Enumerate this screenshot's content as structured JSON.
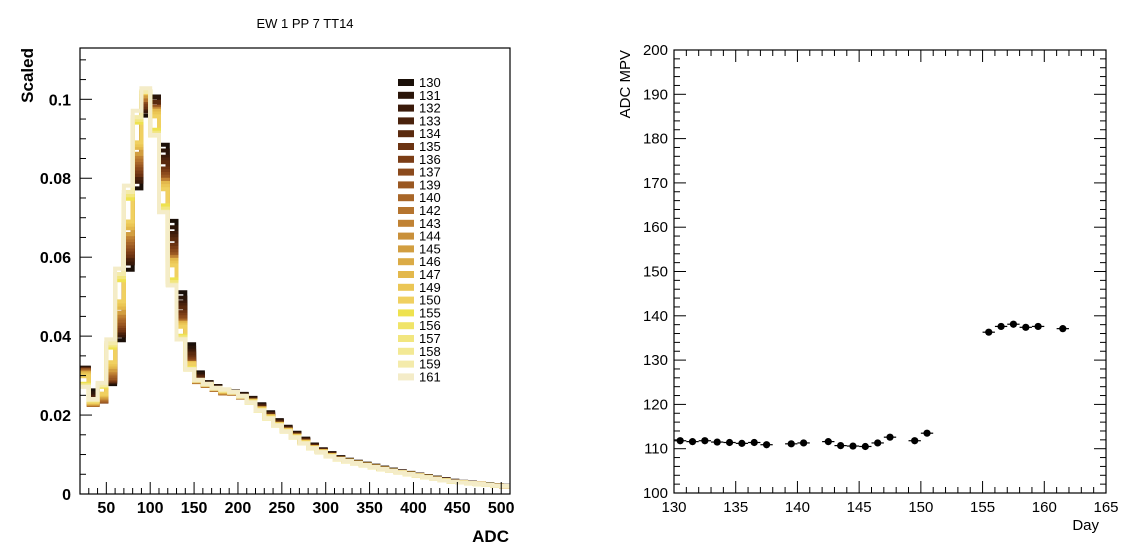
{
  "chart_data": [
    {
      "type": "line",
      "title": "EW 1 PP 7 TT14",
      "xlabel": "ADC",
      "ylabel": "Scaled",
      "xlim": [
        20,
        510
      ],
      "ylim": [
        0,
        0.113
      ],
      "xticks": [
        {
          "v": 50,
          "label": "50"
        },
        {
          "v": 100,
          "label": "100"
        },
        {
          "v": 150,
          "label": "150"
        },
        {
          "v": 200,
          "label": "200"
        },
        {
          "v": 250,
          "label": "250"
        },
        {
          "v": 300,
          "label": "300"
        },
        {
          "v": 350,
          "label": "350"
        },
        {
          "v": 400,
          "label": "400"
        },
        {
          "v": 450,
          "label": "450"
        },
        {
          "v": 500,
          "label": "500"
        }
      ],
      "yticks": [
        {
          "v": 0,
          "label": "0"
        },
        {
          "v": 0.02,
          "label": "0.02"
        },
        {
          "v": 0.04,
          "label": "0.04"
        },
        {
          "v": 0.06,
          "label": "0.06"
        },
        {
          "v": 0.08,
          "label": "0.08"
        },
        {
          "v": 0.1,
          "label": "0.1"
        }
      ],
      "bin_width": 10,
      "bin_start": 20,
      "legend_position": "top-right",
      "reference_values": [
        0.032,
        0.023,
        0.024,
        0.03,
        0.044,
        0.064,
        0.085,
        0.102,
        0.1,
        0.082,
        0.062,
        0.045,
        0.034,
        0.029,
        0.028,
        0.027,
        0.026,
        0.026,
        0.025,
        0.024,
        0.022,
        0.02,
        0.018,
        0.0165,
        0.015,
        0.0135,
        0.012,
        0.011,
        0.01,
        0.009,
        0.0085,
        0.008,
        0.0075,
        0.007,
        0.0065,
        0.006,
        0.0056,
        0.0052,
        0.0048,
        0.0044,
        0.004,
        0.0036,
        0.0032,
        0.003,
        0.0028,
        0.0026,
        0.0024,
        0.0022,
        0.002
      ],
      "series": [
        {
          "name": "130",
          "color": "#1a0f08",
          "shift": 0.9,
          "scale": 1.0
        },
        {
          "name": "131",
          "color": "#2a1509",
          "shift": 0.7,
          "scale": 1.0
        },
        {
          "name": "132",
          "color": "#3a1a0a",
          "shift": 0.6,
          "scale": 0.99
        },
        {
          "name": "133",
          "color": "#4a220c",
          "shift": 0.5,
          "scale": 0.99
        },
        {
          "name": "134",
          "color": "#5a2a0e",
          "shift": 0.4,
          "scale": 0.99
        },
        {
          "name": "135",
          "color": "#6b3312",
          "shift": 0.3,
          "scale": 0.98
        },
        {
          "name": "136",
          "color": "#7b3d16",
          "shift": 0.2,
          "scale": 0.98
        },
        {
          "name": "137",
          "color": "#8b4a1c",
          "shift": 0.1,
          "scale": 0.98
        },
        {
          "name": "139",
          "color": "#9a5822",
          "shift": 0.0,
          "scale": 0.98
        },
        {
          "name": "140",
          "color": "#a86628",
          "shift": -0.1,
          "scale": 0.98
        },
        {
          "name": "142",
          "color": "#b5742e",
          "shift": -0.2,
          "scale": 0.98
        },
        {
          "name": "143",
          "color": "#c08234",
          "shift": -0.2,
          "scale": 0.99
        },
        {
          "name": "144",
          "color": "#c9903a",
          "shift": -0.3,
          "scale": 0.99
        },
        {
          "name": "145",
          "color": "#d29e40",
          "shift": -0.3,
          "scale": 0.99
        },
        {
          "name": "146",
          "color": "#dbab46",
          "shift": -0.4,
          "scale": 1.0
        },
        {
          "name": "147",
          "color": "#e3b84c",
          "shift": -0.4,
          "scale": 1.0
        },
        {
          "name": "149",
          "color": "#ebc655",
          "shift": -0.5,
          "scale": 1.0
        },
        {
          "name": "150",
          "color": "#f0d060",
          "shift": -0.6,
          "scale": 1.0
        },
        {
          "name": "155",
          "color": "#eee24f",
          "shift": -1.2,
          "scale": 1.01
        },
        {
          "name": "156",
          "color": "#f0e468",
          "shift": -1.3,
          "scale": 1.01
        },
        {
          "name": "157",
          "color": "#f2e67f",
          "shift": -1.3,
          "scale": 1.01
        },
        {
          "name": "158",
          "color": "#f3e995",
          "shift": -1.4,
          "scale": 1.01
        },
        {
          "name": "159",
          "color": "#f4ebab",
          "shift": -1.4,
          "scale": 1.01
        },
        {
          "name": "161",
          "color": "#f4ecc8",
          "shift": -1.5,
          "scale": 1.02
        }
      ]
    },
    {
      "type": "scatter",
      "title": "",
      "xlabel": "Day",
      "ylabel": "ADC MPV",
      "xlim": [
        130,
        165
      ],
      "ylim": [
        100,
        200
      ],
      "xticks": [
        {
          "v": 130,
          "label": "130"
        },
        {
          "v": 135,
          "label": "135"
        },
        {
          "v": 140,
          "label": "140"
        },
        {
          "v": 145,
          "label": "145"
        },
        {
          "v": 150,
          "label": "150"
        },
        {
          "v": 155,
          "label": "155"
        },
        {
          "v": 160,
          "label": "160"
        },
        {
          "v": 165,
          "label": "165"
        }
      ],
      "yticks": [
        {
          "v": 100,
          "label": "100"
        },
        {
          "v": 110,
          "label": "110"
        },
        {
          "v": 120,
          "label": "120"
        },
        {
          "v": 130,
          "label": "130"
        },
        {
          "v": 140,
          "label": "140"
        },
        {
          "v": 150,
          "label": "150"
        },
        {
          "v": 160,
          "label": "160"
        },
        {
          "v": 170,
          "label": "170"
        },
        {
          "v": 180,
          "label": "180"
        },
        {
          "v": 190,
          "label": "190"
        },
        {
          "v": 200,
          "label": "200"
        }
      ],
      "x_error": 0.5,
      "points": [
        {
          "x": 130.5,
          "y": 111.8
        },
        {
          "x": 131.5,
          "y": 111.6
        },
        {
          "x": 132.5,
          "y": 111.8
        },
        {
          "x": 133.5,
          "y": 111.5
        },
        {
          "x": 134.5,
          "y": 111.4
        },
        {
          "x": 135.5,
          "y": 111.2
        },
        {
          "x": 136.5,
          "y": 111.4
        },
        {
          "x": 137.5,
          "y": 110.9
        },
        {
          "x": 139.5,
          "y": 111.1
        },
        {
          "x": 140.5,
          "y": 111.3
        },
        {
          "x": 142.5,
          "y": 111.6
        },
        {
          "x": 143.5,
          "y": 110.7
        },
        {
          "x": 144.5,
          "y": 110.6
        },
        {
          "x": 145.5,
          "y": 110.5
        },
        {
          "x": 146.5,
          "y": 111.3
        },
        {
          "x": 147.5,
          "y": 112.6
        },
        {
          "x": 149.5,
          "y": 111.8
        },
        {
          "x": 150.5,
          "y": 113.5
        },
        {
          "x": 155.5,
          "y": 136.3
        },
        {
          "x": 156.5,
          "y": 137.6
        },
        {
          "x": 157.5,
          "y": 138.1
        },
        {
          "x": 158.5,
          "y": 137.4
        },
        {
          "x": 159.5,
          "y": 137.6
        },
        {
          "x": 161.5,
          "y": 137.1
        }
      ]
    }
  ]
}
